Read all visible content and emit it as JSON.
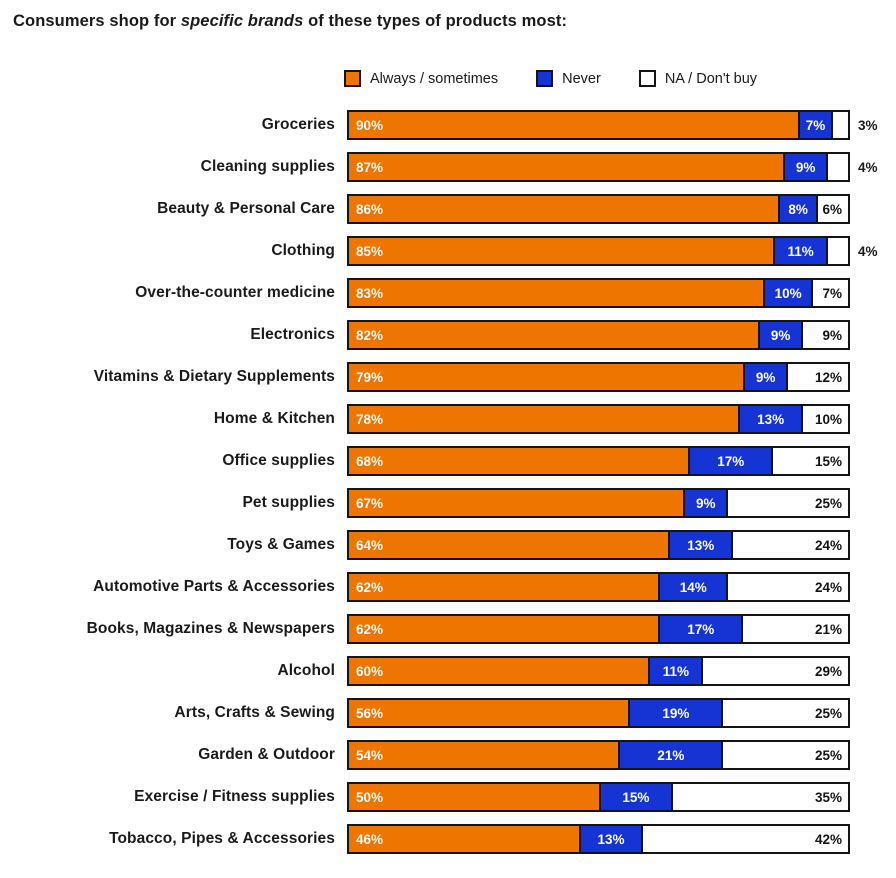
{
  "title": {
    "prefix": "Consumers shop for ",
    "emphasis": "specific brands",
    "suffix": " of these types of products most:"
  },
  "legend": {
    "items": [
      {
        "label": "Always / sometimes",
        "key": "always"
      },
      {
        "label": "Never",
        "key": "never"
      },
      {
        "label": "NA / Don't buy",
        "key": "na"
      }
    ]
  },
  "colors": {
    "always": "#EE7500",
    "never": "#1534D3",
    "na_fill": "#FFFFFF",
    "border": "#141414",
    "text": "#1A1A1A"
  },
  "chart_data": {
    "type": "bar",
    "orientation": "horizontal",
    "stacked": true,
    "title": "Consumers shop for specific brands of these types of products most:",
    "unit": "%",
    "xlim": [
      0,
      100
    ],
    "legend_position": "top",
    "grid": false,
    "categories": [
      "Groceries",
      "Cleaning supplies",
      "Beauty & Personal Care",
      "Clothing",
      "Over-the-counter medicine",
      "Electronics",
      "Vitamins & Dietary Supplements",
      "Home & Kitchen",
      "Office supplies",
      "Pet supplies",
      "Toys & Games",
      "Automotive Parts & Accessories",
      "Books, Magazines & Newspapers",
      "Alcohol",
      "Arts, Crafts & Sewing",
      "Garden & Outdoor",
      "Exercise / Fitness supplies",
      "Tobacco, Pipes & Accessories"
    ],
    "series": [
      {
        "name": "Always / sometimes",
        "color": "#EE7500",
        "values": [
          90,
          87,
          86,
          85,
          83,
          82,
          79,
          78,
          68,
          67,
          64,
          62,
          62,
          60,
          56,
          54,
          50,
          46
        ]
      },
      {
        "name": "Never",
        "color": "#1534D3",
        "values": [
          7,
          9,
          8,
          11,
          10,
          9,
          9,
          13,
          17,
          9,
          13,
          14,
          17,
          11,
          19,
          21,
          15,
          13
        ]
      },
      {
        "name": "NA / Don't buy",
        "color": "#FFFFFF",
        "values": [
          3,
          4,
          6,
          4,
          7,
          9,
          12,
          10,
          15,
          25,
          24,
          24,
          21,
          29,
          25,
          25,
          35,
          42
        ]
      }
    ]
  }
}
